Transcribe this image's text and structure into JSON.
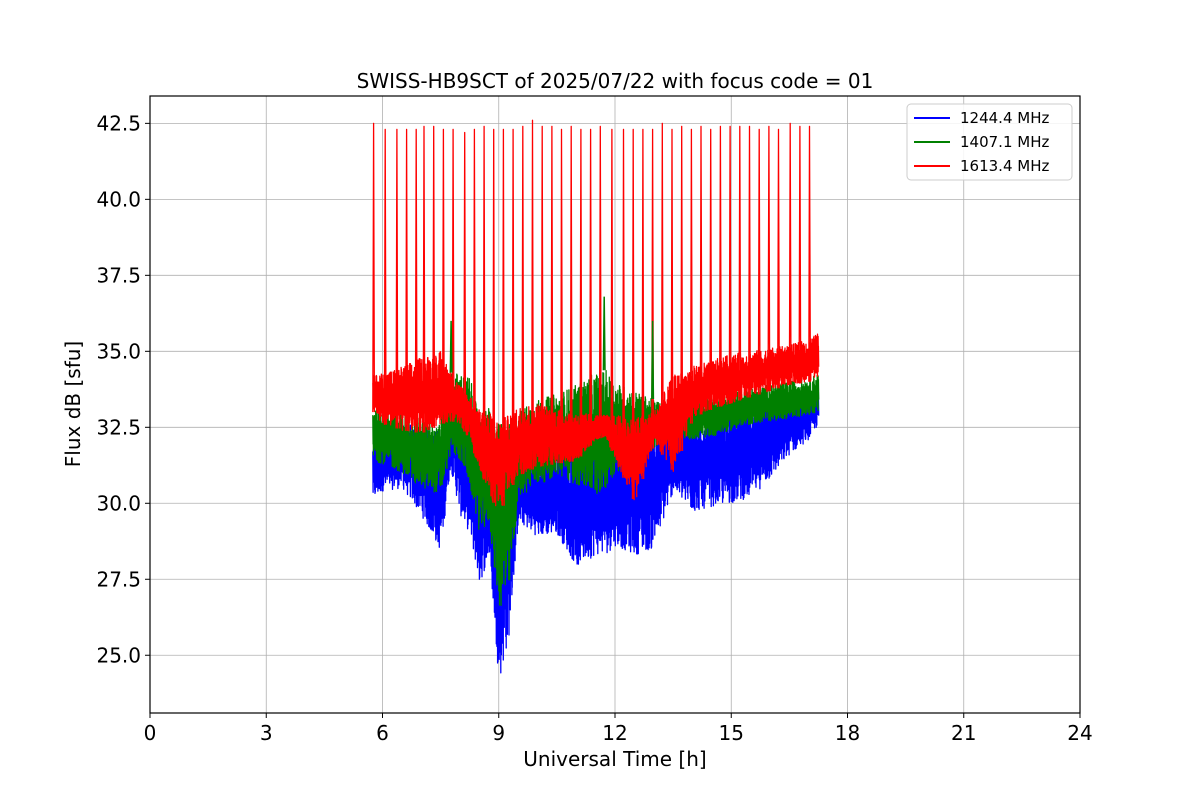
{
  "chart_data": {
    "type": "line",
    "title": "SWISS-HB9SCT of 2025/07/22 with focus code = 01",
    "xlabel": "Universal Time [h]",
    "ylabel": "Flux dB [sfu]",
    "xlim": [
      0,
      24
    ],
    "ylim": [
      23.1,
      43.4
    ],
    "xticks": [
      0,
      3,
      6,
      9,
      12,
      15,
      18,
      21,
      24
    ],
    "yticks": [
      25.0,
      27.5,
      30.0,
      32.5,
      35.0,
      37.5,
      40.0,
      42.5
    ],
    "ytick_labels": [
      "25.0",
      "27.5",
      "30.0",
      "32.5",
      "35.0",
      "37.5",
      "40.0",
      "42.5"
    ],
    "grid": true,
    "legend_position": "top-right",
    "series": [
      {
        "name": "1244.4 MHz",
        "color": "#0000ff",
        "x": [
          5.75,
          6.0,
          6.5,
          7.0,
          7.5,
          7.75,
          8.0,
          8.25,
          8.5,
          8.75,
          9.0,
          9.25,
          9.5,
          10.0,
          10.5,
          11.0,
          11.5,
          11.75,
          12.0,
          12.5,
          13.0,
          13.5,
          14.0,
          14.5,
          15.0,
          15.5,
          16.0,
          16.5,
          17.0,
          17.25
        ],
        "y_low": [
          30.1,
          30.4,
          30.5,
          29.6,
          28.4,
          31.2,
          29.6,
          29.0,
          27.3,
          28.3,
          24.1,
          25.5,
          29.4,
          28.9,
          29.0,
          27.9,
          28.3,
          28.3,
          28.6,
          28.3,
          28.5,
          30.4,
          29.7,
          29.9,
          30.0,
          30.2,
          30.8,
          31.6,
          32.1,
          32.6
        ],
        "y_high": [
          32.0,
          32.4,
          32.8,
          32.5,
          32.5,
          33.4,
          33.0,
          32.2,
          31.5,
          31.0,
          30.8,
          31.0,
          31.3,
          31.5,
          31.8,
          32.2,
          32.3,
          32.6,
          32.7,
          32.9,
          33.1,
          32.6,
          32.8,
          33.0,
          33.2,
          33.3,
          33.4,
          33.5,
          33.7,
          33.9
        ]
      },
      {
        "name": "1407.1 MHz",
        "color": "#008000",
        "x": [
          5.75,
          6.0,
          6.5,
          7.0,
          7.5,
          7.75,
          8.0,
          8.25,
          8.5,
          8.75,
          9.0,
          9.25,
          9.5,
          10.0,
          10.5,
          11.0,
          11.5,
          11.75,
          12.0,
          12.5,
          13.0,
          13.5,
          14.0,
          14.5,
          15.0,
          15.5,
          16.0,
          16.5,
          17.0,
          17.25
        ],
        "y_low": [
          31.4,
          31.3,
          31.0,
          30.5,
          30.3,
          31.6,
          31.4,
          30.5,
          29.0,
          29.3,
          26.5,
          26.8,
          30.2,
          30.6,
          30.9,
          30.6,
          30.2,
          30.5,
          31.0,
          31.4,
          31.8,
          32.2,
          32.1,
          32.2,
          32.4,
          32.6,
          32.7,
          32.8,
          32.9,
          33.0
        ],
        "y_high": [
          33.2,
          33.2,
          33.0,
          32.8,
          32.8,
          34.3,
          34.3,
          34.2,
          32.8,
          33.2,
          32.6,
          32.8,
          33.1,
          33.4,
          33.6,
          33.9,
          34.3,
          34.4,
          34.0,
          33.7,
          33.4,
          33.2,
          33.3,
          33.5,
          33.6,
          33.8,
          33.9,
          34.0,
          34.1,
          34.3
        ]
      },
      {
        "name": "1613.4 MHz",
        "color": "#ff0000",
        "x": [
          5.75,
          6.0,
          6.5,
          7.0,
          7.5,
          7.75,
          8.0,
          8.25,
          8.5,
          8.75,
          9.0,
          9.25,
          9.5,
          10.0,
          10.5,
          11.0,
          11.5,
          11.75,
          12.0,
          12.5,
          13.0,
          13.5,
          14.0,
          14.5,
          15.0,
          15.5,
          16.0,
          16.5,
          17.0,
          17.25
        ],
        "y_low": [
          33.0,
          32.6,
          32.4,
          32.3,
          32.6,
          32.7,
          32.6,
          32.0,
          31.1,
          30.3,
          29.6,
          30.4,
          30.9,
          31.2,
          31.3,
          31.4,
          32.1,
          32.2,
          31.4,
          30.0,
          32.0,
          31.0,
          32.8,
          33.1,
          33.3,
          33.5,
          33.7,
          33.9,
          34.0,
          34.2
        ],
        "y_high": [
          34.2,
          34.3,
          34.5,
          34.8,
          35.0,
          34.4,
          33.9,
          33.6,
          33.1,
          33.0,
          32.7,
          32.9,
          33.2,
          33.3,
          33.1,
          33.0,
          32.9,
          32.9,
          32.9,
          32.8,
          33.0,
          34.2,
          34.5,
          34.7,
          34.9,
          35.0,
          35.1,
          35.2,
          35.4,
          35.6
        ],
        "spikes_x": [
          5.75,
          6.05,
          6.35,
          6.6,
          6.85,
          7.05,
          7.3,
          7.55,
          7.8,
          8.1,
          8.35,
          8.6,
          8.85,
          9.1,
          9.35,
          9.6,
          9.85,
          10.1,
          10.35,
          10.6,
          10.85,
          11.1,
          11.35,
          11.6,
          11.9,
          12.2,
          12.45,
          12.7,
          12.95,
          13.2,
          13.45,
          13.7,
          13.95,
          14.2,
          14.45,
          14.7,
          14.95,
          15.2,
          15.45,
          15.7,
          15.95,
          16.2,
          16.5,
          16.75,
          17.0
        ],
        "spikes_y": [
          42.5,
          42.3,
          42.3,
          42.3,
          42.3,
          42.4,
          42.4,
          42.3,
          42.3,
          42.2,
          42.3,
          42.4,
          42.3,
          42.3,
          42.3,
          42.4,
          42.6,
          42.4,
          42.4,
          42.3,
          42.4,
          42.3,
          42.3,
          42.4,
          42.3,
          42.3,
          42.3,
          42.3,
          42.3,
          42.5,
          42.3,
          42.4,
          42.3,
          42.4,
          42.3,
          42.4,
          42.4,
          42.4,
          42.4,
          42.3,
          42.4,
          42.3,
          42.5,
          42.4,
          42.4
        ]
      }
    ],
    "green_spikes_x": [
      7.75,
      11.7,
      12.95
    ],
    "green_spikes_y": [
      36.0,
      36.8,
      36.0
    ]
  }
}
